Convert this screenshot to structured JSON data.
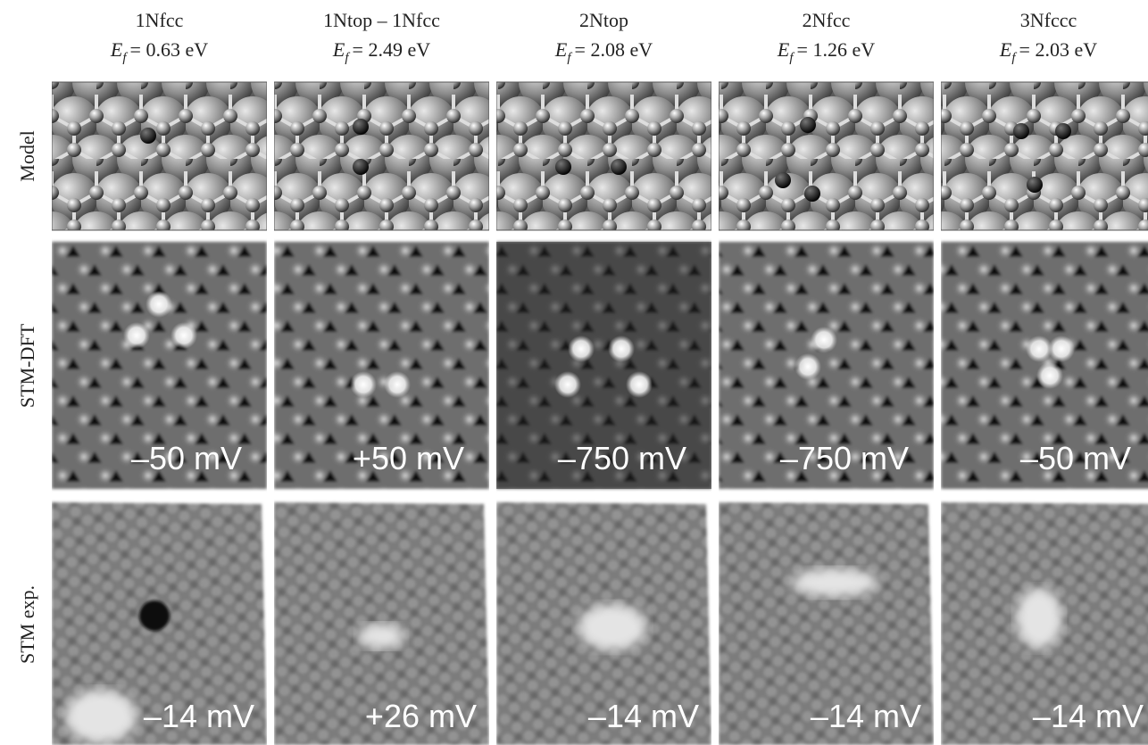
{
  "figure": {
    "energy_symbol": "E",
    "energy_subscript": "f",
    "row_labels": [
      "Model",
      "STM-DFT",
      "STM exp."
    ],
    "columns": [
      {
        "name": "1Nfcc",
        "energy": "= 0.63 eV",
        "dft_bias": "–50 mV",
        "exp_bias": "–14 mV"
      },
      {
        "name": "1Ntop – 1Nfcc",
        "energy": "= 2.49 eV",
        "dft_bias": "+50 mV",
        "exp_bias": "+26 mV"
      },
      {
        "name": "2Ntop",
        "energy": "= 2.08 eV",
        "dft_bias": "–750 mV",
        "exp_bias": "–14 mV"
      },
      {
        "name": "2Nfcc",
        "energy": "= 1.26 eV",
        "dft_bias": "–750 mV",
        "exp_bias": "–14 mV"
      },
      {
        "name": "3Nfccc",
        "energy": "= 2.03 eV",
        "dft_bias": "–50 mV",
        "exp_bias": "–14 mV"
      }
    ]
  }
}
